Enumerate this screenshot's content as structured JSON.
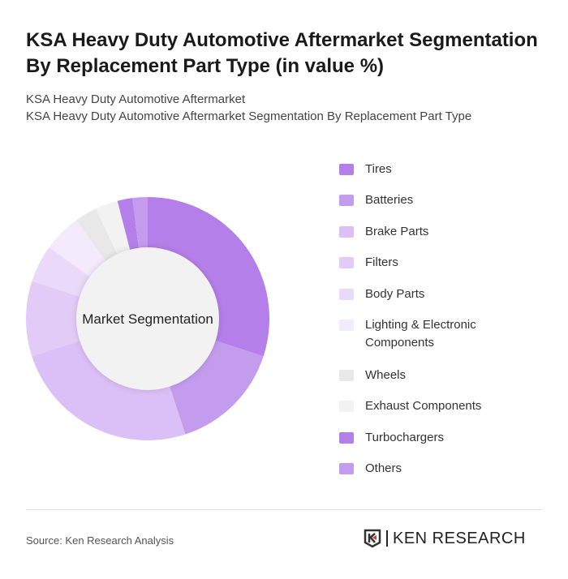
{
  "title": "KSA Heavy Duty Automotive Aftermarket Segmentation By Replacement Part Type (in value %)",
  "subtitle1": "KSA Heavy Duty Automotive Aftermarket",
  "subtitle2": "KSA Heavy Duty Automotive Aftermarket Segmentation By Replacement Part Type",
  "source": "Source: Ken Research Analysis",
  "logo_text": "KEN RESEARCH",
  "chart_data": {
    "type": "pie",
    "variant": "donut",
    "center_label": "Market Segmentation",
    "legend_position": "right",
    "categories": [
      "Tires",
      "Batteries",
      "Brake Parts",
      "Filters",
      "Body Parts",
      "Lighting & Electronic Components",
      "Wheels",
      "Exhaust Components",
      "Turbochargers",
      "Others"
    ],
    "values": [
      30,
      15,
      25,
      10,
      5,
      5,
      3,
      3,
      2,
      2
    ],
    "colors": [
      "#b57fe9",
      "#c49cee",
      "#dbbff7",
      "#e3cbf7",
      "#ebd9f9",
      "#f3ebfc",
      "#e8e8e8",
      "#f2f2f2",
      "#b57fe9",
      "#c49cee"
    ]
  }
}
